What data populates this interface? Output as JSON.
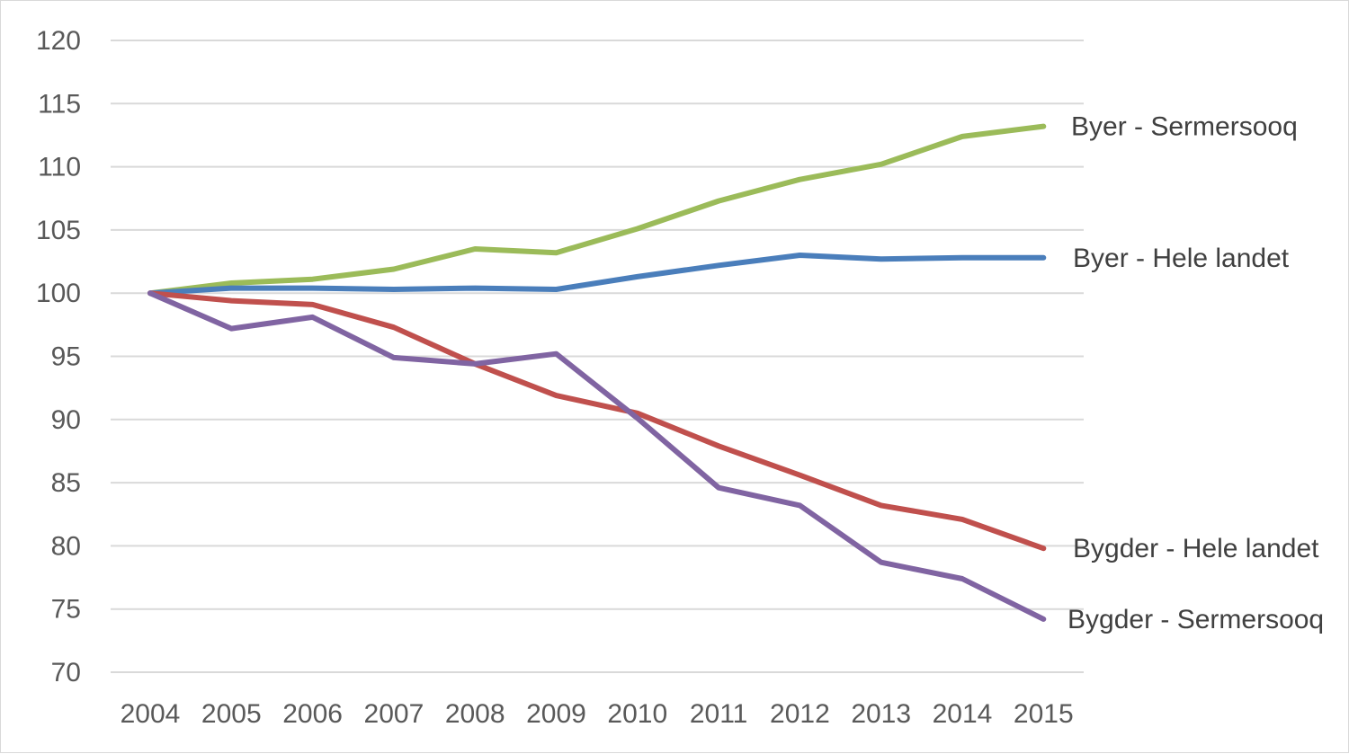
{
  "chart_data": {
    "type": "line",
    "title": "",
    "xlabel": "",
    "ylabel": "",
    "x": [
      "2004",
      "2005",
      "2006",
      "2007",
      "2008",
      "2009",
      "2010",
      "2011",
      "2012",
      "2013",
      "2014",
      "2015"
    ],
    "ylim": [
      70,
      120
    ],
    "yticks": [
      "70",
      "75",
      "80",
      "85",
      "90",
      "95",
      "100",
      "105",
      "110",
      "115",
      "120"
    ],
    "grid": "horizontal",
    "legend": "inline labels at line ends (right)",
    "series": [
      {
        "name": "Byer - Sermersooq",
        "color": "#9bbb59",
        "values": [
          100,
          100.8,
          101.1,
          101.9,
          103.5,
          103.2,
          105.1,
          107.3,
          109.0,
          110.2,
          112.4,
          113.2
        ]
      },
      {
        "name": "Byer - Hele landet",
        "color": "#4a7ebb",
        "values": [
          100,
          100.4,
          100.4,
          100.3,
          100.4,
          100.3,
          101.3,
          102.2,
          103.0,
          102.7,
          102.8,
          102.8
        ]
      },
      {
        "name": "Bygder - Hele landet",
        "color": "#c0504d",
        "values": [
          100,
          99.4,
          99.1,
          97.3,
          94.4,
          91.9,
          90.5,
          87.9,
          85.6,
          83.2,
          82.1,
          79.8
        ]
      },
      {
        "name": "Bygder - Sermersooq",
        "color": "#8064a2",
        "values": [
          100,
          97.2,
          98.1,
          94.9,
          94.4,
          95.2,
          90.1,
          84.6,
          83.2,
          78.7,
          77.4,
          74.2
        ]
      }
    ]
  }
}
